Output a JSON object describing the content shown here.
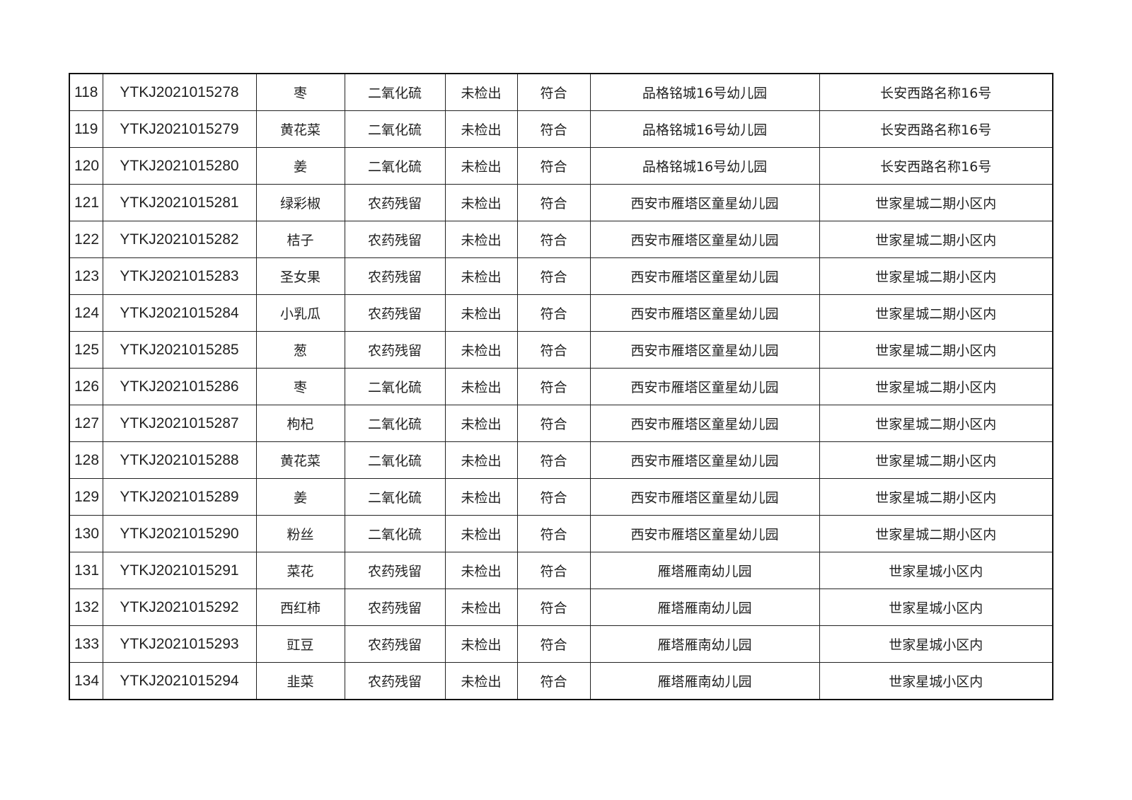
{
  "rows": [
    [
      "118",
      "YTKJ2021015278",
      "枣",
      "二氧化硫",
      "未检出",
      "符合",
      "品格铭城16号幼儿园",
      "长安西路名称16号"
    ],
    [
      "119",
      "YTKJ2021015279",
      "黄花菜",
      "二氧化硫",
      "未检出",
      "符合",
      "品格铭城16号幼儿园",
      "长安西路名称16号"
    ],
    [
      "120",
      "YTKJ2021015280",
      "姜",
      "二氧化硫",
      "未检出",
      "符合",
      "品格铭城16号幼儿园",
      "长安西路名称16号"
    ],
    [
      "121",
      "YTKJ2021015281",
      "绿彩椒",
      "农药残留",
      "未检出",
      "符合",
      "西安市雁塔区童星幼儿园",
      "世家星城二期小区内"
    ],
    [
      "122",
      "YTKJ2021015282",
      "桔子",
      "农药残留",
      "未检出",
      "符合",
      "西安市雁塔区童星幼儿园",
      "世家星城二期小区内"
    ],
    [
      "123",
      "YTKJ2021015283",
      "圣女果",
      "农药残留",
      "未检出",
      "符合",
      "西安市雁塔区童星幼儿园",
      "世家星城二期小区内"
    ],
    [
      "124",
      "YTKJ2021015284",
      "小乳瓜",
      "农药残留",
      "未检出",
      "符合",
      "西安市雁塔区童星幼儿园",
      "世家星城二期小区内"
    ],
    [
      "125",
      "YTKJ2021015285",
      "葱",
      "农药残留",
      "未检出",
      "符合",
      "西安市雁塔区童星幼儿园",
      "世家星城二期小区内"
    ],
    [
      "126",
      "YTKJ2021015286",
      "枣",
      "二氧化硫",
      "未检出",
      "符合",
      "西安市雁塔区童星幼儿园",
      "世家星城二期小区内"
    ],
    [
      "127",
      "YTKJ2021015287",
      "枸杞",
      "二氧化硫",
      "未检出",
      "符合",
      "西安市雁塔区童星幼儿园",
      "世家星城二期小区内"
    ],
    [
      "128",
      "YTKJ2021015288",
      "黄花菜",
      "二氧化硫",
      "未检出",
      "符合",
      "西安市雁塔区童星幼儿园",
      "世家星城二期小区内"
    ],
    [
      "129",
      "YTKJ2021015289",
      "姜",
      "二氧化硫",
      "未检出",
      "符合",
      "西安市雁塔区童星幼儿园",
      "世家星城二期小区内"
    ],
    [
      "130",
      "YTKJ2021015290",
      "粉丝",
      "二氧化硫",
      "未检出",
      "符合",
      "西安市雁塔区童星幼儿园",
      "世家星城二期小区内"
    ],
    [
      "131",
      "YTKJ2021015291",
      "菜花",
      "农药残留",
      "未检出",
      "符合",
      "雁塔雁南幼儿园",
      "世家星城小区内"
    ],
    [
      "132",
      "YTKJ2021015292",
      "西红柿",
      "农药残留",
      "未检出",
      "符合",
      "雁塔雁南幼儿园",
      "世家星城小区内"
    ],
    [
      "133",
      "YTKJ2021015293",
      "豇豆",
      "农药残留",
      "未检出",
      "符合",
      "雁塔雁南幼儿园",
      "世家星城小区内"
    ],
    [
      "134",
      "YTKJ2021015294",
      "韭菜",
      "农药残留",
      "未检出",
      "符合",
      "雁塔雁南幼儿园",
      "世家星城小区内"
    ]
  ]
}
